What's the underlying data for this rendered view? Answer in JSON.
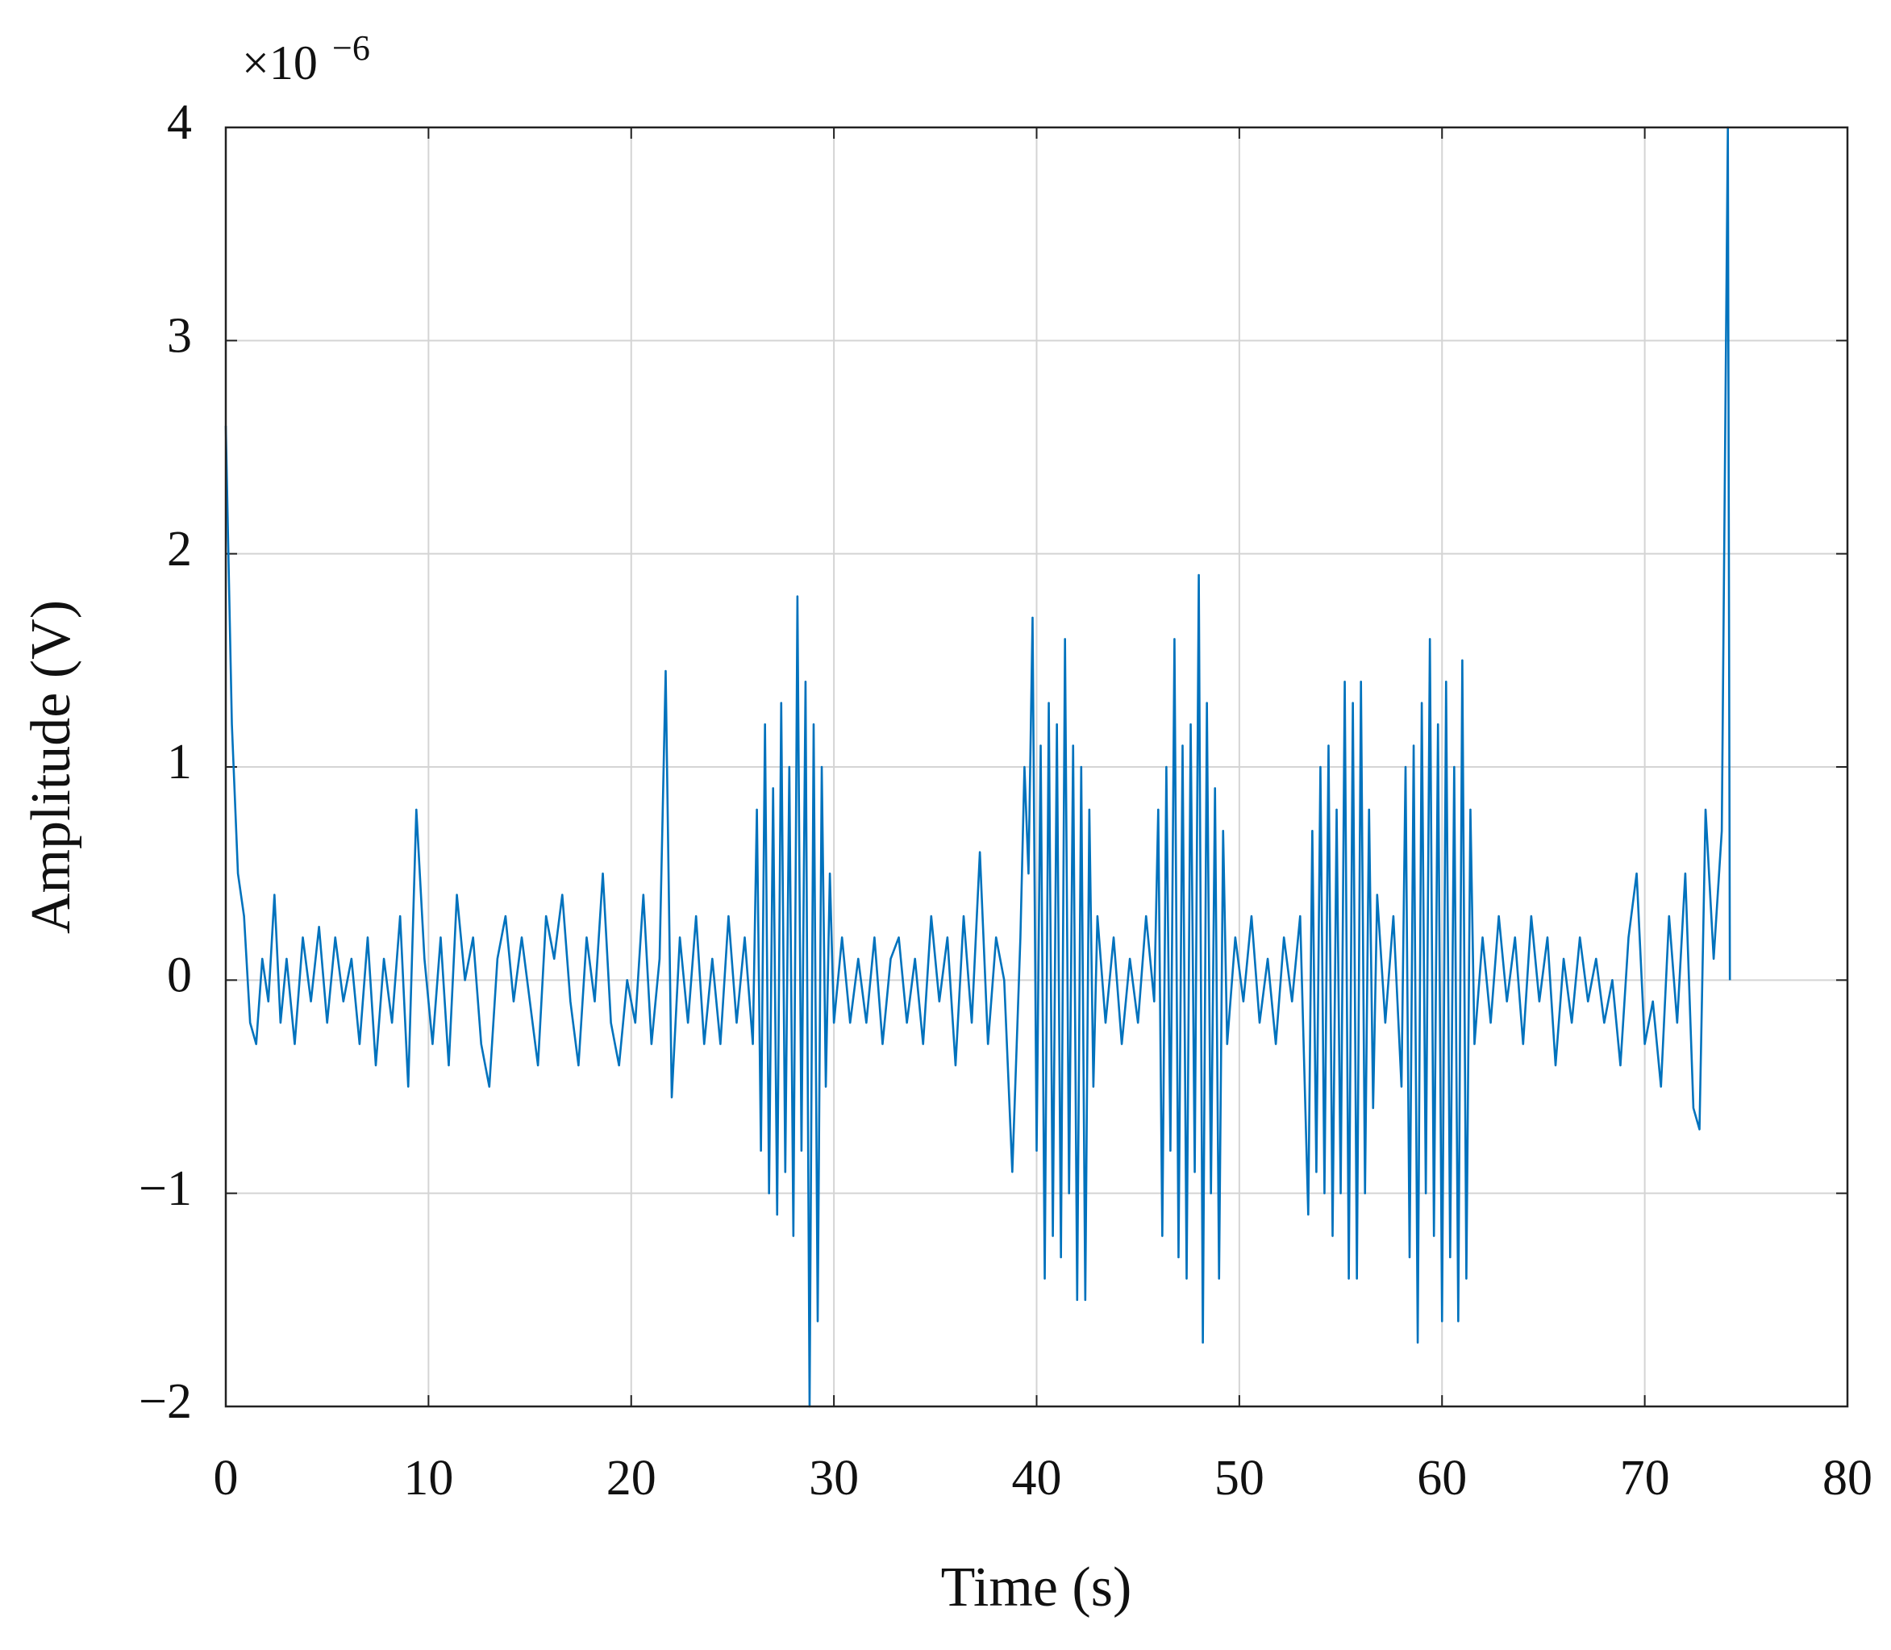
{
  "chart_data": {
    "type": "line",
    "x_label": "Time (s)",
    "y_label": "Amplitude (V)",
    "y_multiplier": {
      "base": "×10",
      "exponent": "−6"
    },
    "xlim": [
      0,
      80
    ],
    "xticks": [
      0,
      10,
      20,
      30,
      40,
      50,
      60,
      70,
      80
    ],
    "ylim": [
      -2,
      4
    ],
    "yticks": [
      {
        "value": -2,
        "label": "−2"
      },
      {
        "value": -1,
        "label": "−1"
      },
      0,
      1,
      2,
      3,
      4
    ],
    "grid": true,
    "series": [
      {
        "color": "#0072bd",
        "x": [
          0,
          0.3,
          0.6,
          0.9,
          1.2,
          1.5,
          1.8,
          2.1,
          2.4,
          2.7,
          3,
          3.4,
          3.8,
          4.2,
          4.6,
          5,
          5.4,
          5.8,
          6.2,
          6.6,
          7,
          7.4,
          7.8,
          8.2,
          8.6,
          9,
          9.4,
          9.8,
          10.2,
          10.6,
          11,
          11.4,
          11.8,
          12.2,
          12.6,
          13,
          13.4,
          13.8,
          14.2,
          14.6,
          15,
          15.4,
          15.8,
          16.2,
          16.6,
          17,
          17.4,
          17.8,
          18.2,
          18.6,
          19,
          19.4,
          19.8,
          20.2,
          20.6,
          21,
          21.4,
          21.7,
          22,
          22.4,
          22.8,
          23.2,
          23.6,
          24,
          24.4,
          24.8,
          25.2,
          25.6,
          26,
          26.2,
          26.4,
          26.6,
          26.8,
          27,
          27.2,
          27.4,
          27.6,
          27.8,
          28,
          28.2,
          28.4,
          28.6,
          28.8,
          29,
          29.2,
          29.4,
          29.6,
          29.8,
          30,
          30.4,
          30.8,
          31.2,
          31.6,
          32,
          32.4,
          32.8,
          33.2,
          33.6,
          34,
          34.4,
          34.8,
          35.2,
          35.6,
          36,
          36.4,
          36.8,
          37.2,
          37.6,
          38,
          38.4,
          38.8,
          39.2,
          39.4,
          39.6,
          39.8,
          40,
          40.2,
          40.4,
          40.6,
          40.8,
          41,
          41.2,
          41.4,
          41.6,
          41.8,
          42,
          42.2,
          42.4,
          42.6,
          42.8,
          43,
          43.4,
          43.8,
          44.2,
          44.6,
          45,
          45.4,
          45.8,
          46,
          46.2,
          46.4,
          46.6,
          46.8,
          47,
          47.2,
          47.4,
          47.6,
          47.8,
          48,
          48.2,
          48.4,
          48.6,
          48.8,
          49,
          49.2,
          49.4,
          49.8,
          50.2,
          50.6,
          51,
          51.4,
          51.8,
          52.2,
          52.6,
          53,
          53.4,
          53.6,
          53.8,
          54,
          54.2,
          54.4,
          54.6,
          54.8,
          55,
          55.2,
          55.4,
          55.6,
          55.8,
          56,
          56.2,
          56.4,
          56.6,
          56.8,
          57.2,
          57.6,
          58,
          58.2,
          58.4,
          58.6,
          58.8,
          59,
          59.2,
          59.4,
          59.6,
          59.8,
          60,
          60.2,
          60.4,
          60.6,
          60.8,
          61,
          61.2,
          61.4,
          61.6,
          62,
          62.4,
          62.8,
          63.2,
          63.6,
          64,
          64.4,
          64.8,
          65.2,
          65.6,
          66,
          66.4,
          66.8,
          67.2,
          67.6,
          68,
          68.4,
          68.8,
          69.2,
          69.6,
          70,
          70.4,
          70.8,
          71.2,
          71.6,
          72,
          72.4,
          72.7,
          73,
          73.4,
          73.8,
          74.1,
          74.2
        ],
        "values": [
          2.6,
          1.2,
          0.5,
          0.3,
          -0.2,
          -0.3,
          0.1,
          -0.1,
          0.4,
          -0.2,
          0.1,
          -0.3,
          0.2,
          -0.1,
          0.25,
          -0.2,
          0.2,
          -0.1,
          0.1,
          -0.3,
          0.2,
          -0.4,
          0.1,
          -0.2,
          0.3,
          -0.5,
          0.8,
          0.1,
          -0.3,
          0.2,
          -0.4,
          0.4,
          0,
          0.2,
          -0.3,
          -0.5,
          0.1,
          0.3,
          -0.1,
          0.2,
          -0.1,
          -0.4,
          0.3,
          0.1,
          0.4,
          -0.1,
          -0.4,
          0.2,
          -0.1,
          0.5,
          -0.2,
          -0.4,
          0,
          -0.2,
          0.4,
          -0.3,
          0.1,
          1.45,
          -0.55,
          0.2,
          -0.2,
          0.3,
          -0.3,
          0.1,
          -0.3,
          0.3,
          -0.2,
          0.2,
          -0.3,
          0.8,
          -0.8,
          1.2,
          -1,
          0.9,
          -1.1,
          1.3,
          -0.9,
          1,
          -1.2,
          1.8,
          -0.8,
          1.4,
          -2,
          1.2,
          -1.6,
          1,
          -0.5,
          0.5,
          -0.2,
          0.2,
          -0.2,
          0.1,
          -0.2,
          0.2,
          -0.3,
          0.1,
          0.2,
          -0.2,
          0.1,
          -0.3,
          0.3,
          -0.1,
          0.2,
          -0.4,
          0.3,
          -0.2,
          0.6,
          -0.3,
          0.2,
          0,
          -0.9,
          0.2,
          1,
          0.5,
          1.7,
          -0.8,
          1.1,
          -1.4,
          1.3,
          -1.2,
          1.2,
          -1.3,
          1.6,
          -1,
          1.1,
          -1.5,
          1,
          -1.5,
          0.8,
          -0.5,
          0.3,
          -0.2,
          0.2,
          -0.3,
          0.1,
          -0.2,
          0.3,
          -0.1,
          0.8,
          -1.2,
          1,
          -0.8,
          1.6,
          -1.3,
          1.1,
          -1.4,
          1.2,
          -0.9,
          1.9,
          -1.7,
          1.3,
          -1,
          0.9,
          -1.4,
          0.7,
          -0.3,
          0.2,
          -0.1,
          0.3,
          -0.2,
          0.1,
          -0.3,
          0.2,
          -0.1,
          0.3,
          -1.1,
          0.7,
          -0.9,
          1,
          -1,
          1.1,
          -1.2,
          0.8,
          -1,
          1.4,
          -1.4,
          1.3,
          -1.4,
          1.4,
          -1,
          0.8,
          -0.6,
          0.4,
          -0.2,
          0.3,
          -0.5,
          1,
          -1.3,
          1.1,
          -1.7,
          1.3,
          -1,
          1.6,
          -1.2,
          1.2,
          -1.6,
          1.4,
          -1.3,
          1,
          -1.6,
          1.5,
          -1.4,
          0.8,
          -0.3,
          0.2,
          -0.2,
          0.3,
          -0.1,
          0.2,
          -0.3,
          0.3,
          -0.1,
          0.2,
          -0.4,
          0.1,
          -0.2,
          0.2,
          -0.1,
          0.1,
          -0.2,
          0,
          -0.4,
          0.2,
          0.5,
          -0.3,
          -0.1,
          -0.5,
          0.3,
          -0.2,
          0.5,
          -0.6,
          -0.7,
          0.8,
          0.1,
          0.7,
          4,
          0
        ]
      }
    ]
  }
}
